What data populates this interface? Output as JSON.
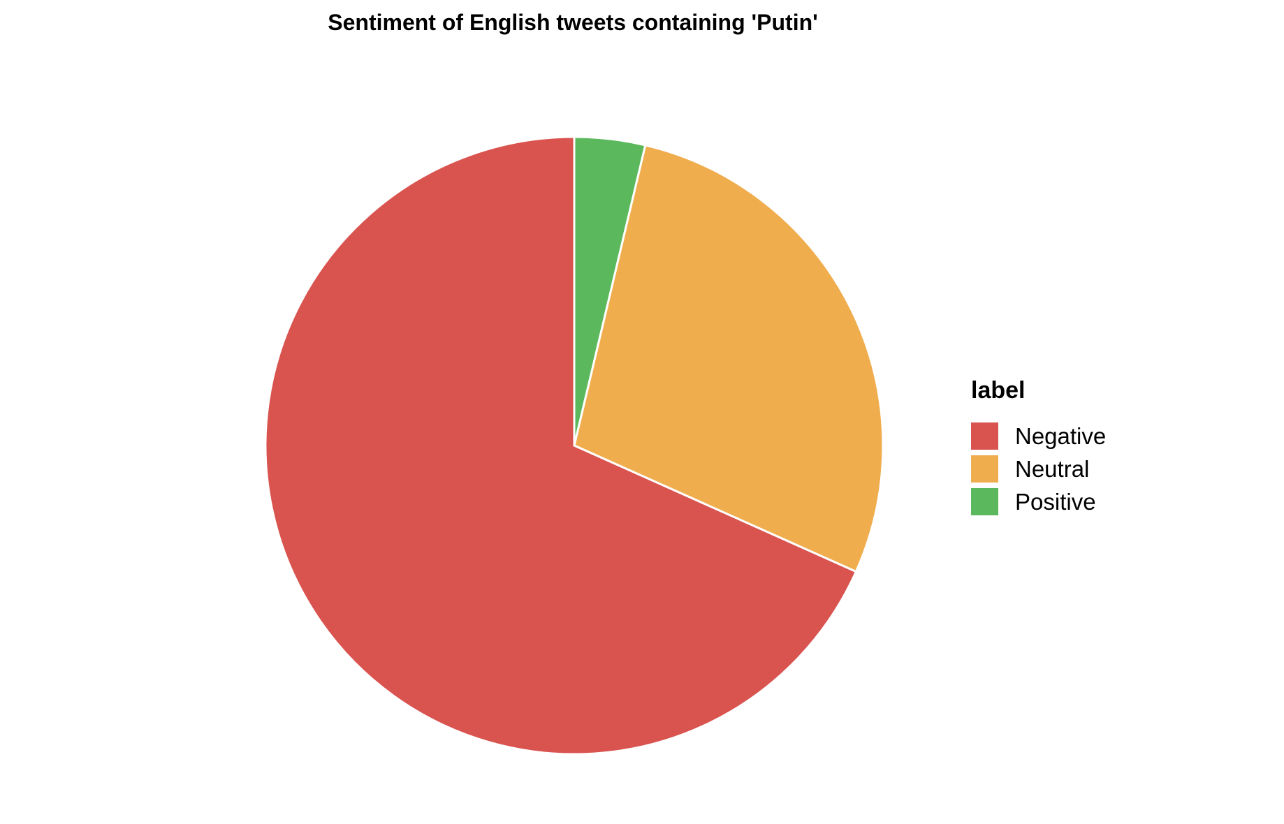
{
  "chart_data": {
    "type": "pie",
    "title": "Sentiment of English tweets containing 'Putin'",
    "legend_title": "label",
    "legend_position": "right",
    "start_angle_deg": 0,
    "direction": "clockwise",
    "slice_order": [
      "Positive",
      "Neutral",
      "Negative"
    ],
    "categories": [
      "Negative",
      "Neutral",
      "Positive"
    ],
    "values": [
      68.3,
      28.0,
      3.7
    ],
    "colors": [
      "#d9534f",
      "#f0ad4e",
      "#5cb85c"
    ]
  }
}
